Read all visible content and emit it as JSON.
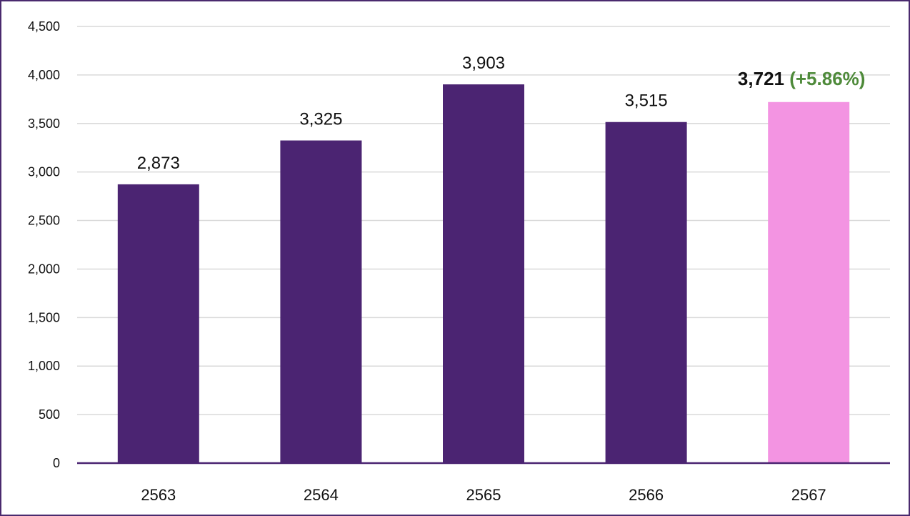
{
  "chart_data": {
    "type": "bar",
    "title": "",
    "xlabel": "",
    "ylabel": "",
    "categories": [
      "2563",
      "2564",
      "2565",
      "2566",
      "2567"
    ],
    "values": [
      2873,
      3325,
      3903,
      3515,
      3721
    ],
    "value_labels": [
      "2,873",
      "3,325",
      "3,903",
      "3,515",
      "3,721"
    ],
    "highlight_index": 4,
    "highlight_change_label": "(+5.86%)",
    "ylim": [
      0,
      4500
    ],
    "yticks": [
      0,
      500,
      1000,
      1500,
      2000,
      2500,
      3000,
      3500,
      4000,
      4500
    ],
    "ytick_labels": [
      "0",
      "500",
      "1,000",
      "1,500",
      "2,000",
      "2,500",
      "3,000",
      "3,500",
      "4,000",
      "4,500"
    ],
    "grid": true,
    "legend": "none",
    "colors": {
      "bar": "#4b2472",
      "highlight_bar": "#f394e2",
      "change_text": "#4e8a3a",
      "gridline": "#d9d9d9",
      "axis": "#4b2472",
      "frame": "#4a2a6e"
    }
  }
}
